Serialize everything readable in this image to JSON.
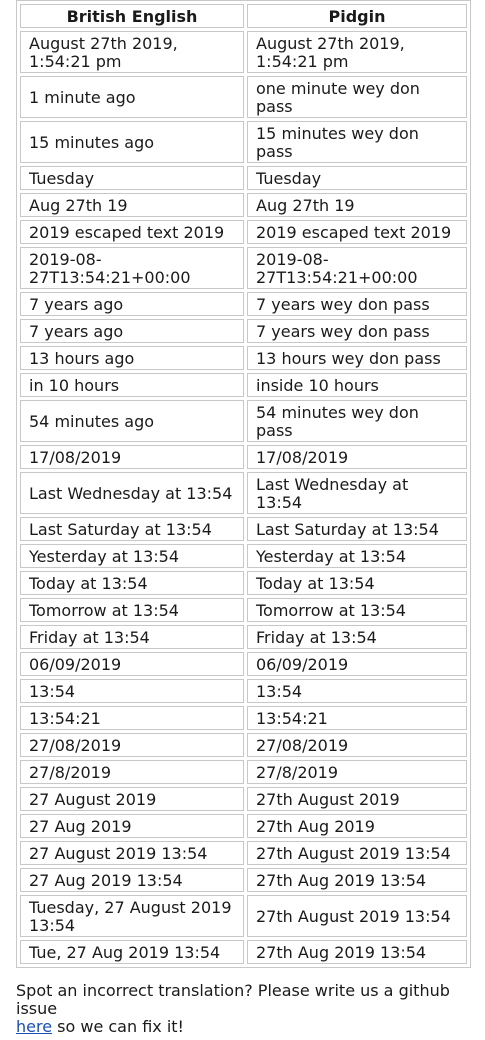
{
  "table": {
    "headers": [
      "British English",
      "Pidgin"
    ],
    "rows": [
      [
        "August 27th 2019, 1:54:21 pm",
        "August 27th 2019, 1:54:21 pm"
      ],
      [
        "1 minute ago",
        "one minute wey don pass"
      ],
      [
        "15 minutes ago",
        "15 minutes wey don pass"
      ],
      [
        "Tuesday",
        "Tuesday"
      ],
      [
        "Aug 27th 19",
        "Aug 27th 19"
      ],
      [
        "2019 escaped text 2019",
        "2019 escaped text 2019"
      ],
      [
        "2019-08-27T13:54:21+00:00",
        "2019-08-27T13:54:21+00:00"
      ],
      [
        "7 years ago",
        "7 years wey don pass"
      ],
      [
        "7 years ago",
        "7 years wey don pass"
      ],
      [
        "13 hours ago",
        "13 hours wey don pass"
      ],
      [
        "in 10 hours",
        "inside 10 hours"
      ],
      [
        "54 minutes ago",
        "54 minutes wey don pass"
      ],
      [
        "17/08/2019",
        "17/08/2019"
      ],
      [
        "Last Wednesday at 13:54",
        "Last Wednesday at 13:54"
      ],
      [
        "Last Saturday at 13:54",
        "Last Saturday at 13:54"
      ],
      [
        "Yesterday at 13:54",
        "Yesterday at 13:54"
      ],
      [
        "Today at 13:54",
        "Today at 13:54"
      ],
      [
        "Tomorrow at 13:54",
        "Tomorrow at 13:54"
      ],
      [
        "Friday at 13:54",
        "Friday at 13:54"
      ],
      [
        "06/09/2019",
        "06/09/2019"
      ],
      [
        "13:54",
        "13:54"
      ],
      [
        "13:54:21",
        "13:54:21"
      ],
      [
        "27/08/2019",
        "27/08/2019"
      ],
      [
        "27/8/2019",
        "27/8/2019"
      ],
      [
        "27 August 2019",
        "27th August 2019"
      ],
      [
        "27 Aug 2019",
        "27th Aug 2019"
      ],
      [
        "27 August 2019 13:54",
        "27th August 2019 13:54"
      ],
      [
        "27 Aug 2019 13:54",
        "27th Aug 2019 13:54"
      ],
      [
        "Tuesday, 27 August 2019 13:54",
        "27th August 2019 13:54"
      ],
      [
        "Tue, 27 Aug 2019 13:54",
        "27th Aug 2019 13:54"
      ]
    ]
  },
  "footer": {
    "text_before": "Spot an incorrect translation? Please write us a github issue",
    "link_label": "here",
    "text_after": " so we can fix it!"
  }
}
